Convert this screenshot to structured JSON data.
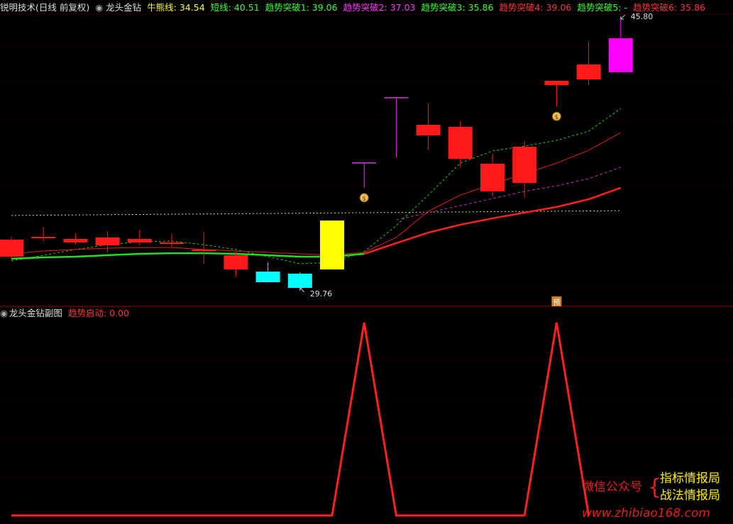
{
  "header": {
    "symbol": "锐明技术(日线 前复权)",
    "indicator": "龙头金钻",
    "items": [
      {
        "text": "牛熊线: 34.54",
        "color": "#ffff33"
      },
      {
        "text": "短线: 40.51",
        "color": "#33ff33"
      },
      {
        "text": "趋势突破1: 39.06",
        "color": "#33ff33"
      },
      {
        "text": "趋势突破2: 37.03",
        "color": "#ff33ff"
      },
      {
        "text": "趋势突破3: 35.86",
        "color": "#33ff33"
      },
      {
        "text": "趋势突破4: 39.06",
        "color": "#ff3333"
      },
      {
        "text": "趋势突破5: -",
        "color": "#33ff33"
      },
      {
        "text": "趋势突破6: 35.86",
        "color": "#ff3333"
      }
    ]
  },
  "sub_header": {
    "title": "龙头金钻副图",
    "item": {
      "text": "趋势启动: 0.00",
      "color": "#ff3333"
    }
  },
  "watermark": {
    "left": "微信公众号",
    "right_top": "指标情报局",
    "right_bottom": "战法情报局",
    "url": "www.zhibiao168.com"
  },
  "chart_data": [
    {
      "type": "candlestick",
      "ylim": [
        28.66,
        46.94
      ],
      "open": [
        31.62,
        32.72,
        32.47,
        32.3,
        32.47,
        32.38,
        31.96,
        30.86,
        30.73,
        30.61,
        30.86,
        37.2,
        41.1,
        38.86,
        37.46,
        35.52,
        36.02,
        41.86,
        42.2,
        42.63
      ],
      "close": [
        32.64,
        32.81,
        32.68,
        32.77,
        32.68,
        32.47,
        32.05,
        31.71,
        30.1,
        29.76,
        33.78,
        37.25,
        41.14,
        39.49,
        39.37,
        37.17,
        38.18,
        42.12,
        43.09,
        44.66
      ],
      "high": [
        32.81,
        33.4,
        32.98,
        33.15,
        33.23,
        32.98,
        33.1,
        31.92,
        31.28,
        30.69,
        33.78,
        37.25,
        41.14,
        40.76,
        39.71,
        37.76,
        38.52,
        42.12,
        44.45,
        45.8
      ],
      "low": [
        31.41,
        32.55,
        32.34,
        31.88,
        32.3,
        32.22,
        31.2,
        30.44,
        30.1,
        29.76,
        30.86,
        35.73,
        37.55,
        38.01,
        36.96,
        35.22,
        35.18,
        40.59,
        41.86,
        42.63
      ],
      "colors": [
        "#ff1a1a",
        "#ff1a1a",
        "#ff1a1a",
        "#ff1a1a",
        "#ff1a1a",
        "#ff1a1a",
        "#ff1a1a",
        "#ff1a1a",
        "#00ffff",
        "#00ffff",
        "#ffff00",
        "#dd33dd",
        "#dd33dd",
        "#ff1a1a",
        "#ff1a1a",
        "#ff1a1a",
        "#ff1a1a",
        "#ff1a1a",
        "#ff1a1a",
        "#ff00ff"
      ],
      "annotations": {
        "max_label": "45.80",
        "min_label": "29.76"
      },
      "lines": [
        {
          "color": "#dddd66",
          "width": 1,
          "dash": "2,3",
          "values": [
            34.08,
            34.1,
            34.11,
            34.13,
            34.14,
            34.16,
            34.17,
            34.19,
            34.2,
            34.22,
            34.23,
            34.25,
            34.26,
            34.28,
            34.29,
            34.31,
            34.32,
            34.34,
            34.35,
            34.37
          ]
        },
        {
          "color": "#22cc22",
          "width": 1,
          "dash": "3,3",
          "values": [
            31.37,
            31.71,
            32.05,
            32.34,
            32.51,
            32.55,
            32.34,
            32.05,
            31.62,
            31.2,
            31.28,
            31.92,
            33.48,
            35.3,
            37.21,
            37.93,
            38.22,
            38.56,
            39.11,
            40.47
          ]
        },
        {
          "color": "#dd2222",
          "width": 1,
          "dash": "",
          "values": [
            31.79,
            31.96,
            32.05,
            32.13,
            32.17,
            32.17,
            32.05,
            31.96,
            31.88,
            31.79,
            31.71,
            31.88,
            32.77,
            34.33,
            35.3,
            35.94,
            36.57,
            37.21,
            37.97,
            39.03
          ]
        },
        {
          "color": "#bb33bb",
          "width": 1,
          "dash": "4,3",
          "values": [
            null,
            null,
            null,
            null,
            null,
            null,
            null,
            null,
            null,
            null,
            null,
            null,
            33.82,
            34.25,
            34.67,
            35.09,
            35.52,
            35.85,
            36.28,
            36.96
          ]
        },
        {
          "color": "#22dd22",
          "width": 2.5,
          "dash": "",
          "values": [
            31.5,
            31.58,
            31.62,
            31.71,
            31.79,
            31.83,
            31.83,
            31.79,
            31.71,
            31.62,
            31.62,
            31.79,
            null,
            null,
            null,
            null,
            null,
            null,
            null,
            null
          ]
        },
        {
          "color": "#ff2222",
          "width": 2.5,
          "dash": "",
          "values": [
            null,
            null,
            null,
            null,
            null,
            null,
            null,
            null,
            null,
            null,
            null,
            31.79,
            32.43,
            33.06,
            33.53,
            33.91,
            34.25,
            34.59,
            35.05,
            35.73
          ]
        }
      ]
    },
    {
      "type": "line",
      "ylim": [
        0,
        1
      ],
      "color": "#ff2020",
      "values": [
        0,
        0,
        0,
        0,
        0,
        0,
        0,
        0,
        0,
        0,
        0,
        1,
        0,
        0,
        0,
        0,
        0,
        1,
        0,
        null
      ]
    }
  ]
}
